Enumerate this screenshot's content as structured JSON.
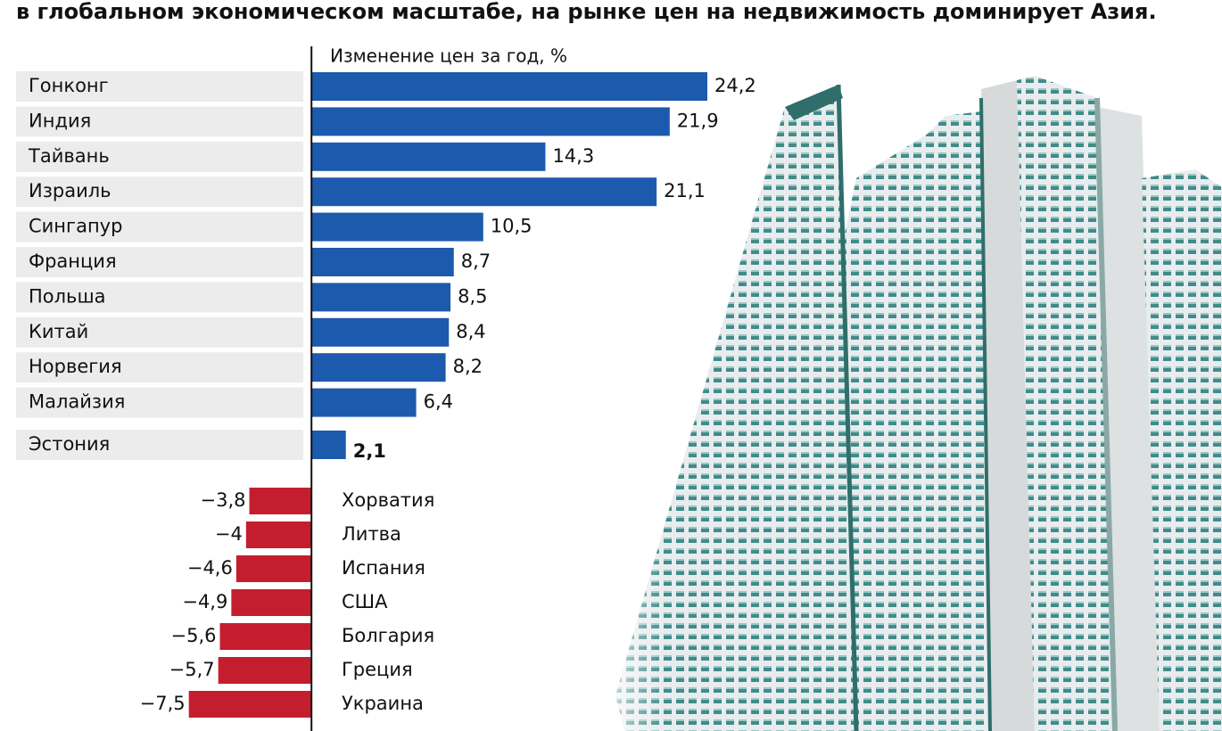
{
  "chart_data": {
    "type": "bar",
    "title": "в глобальном экономическом масштабе, на рынке цен на недвижимость доминирует Азия.",
    "axis_label": "Изменение цен за год, %",
    "categories": [
      "Гонконг",
      "Индия",
      "Тайвань",
      "Израиль",
      "Сингапур",
      "Франция",
      "Польша",
      "Китай",
      "Норвегия",
      "Малайзия",
      "Эстония",
      "Хорватия",
      "Литва",
      "Испания",
      "США",
      "Болгария",
      "Греция",
      "Украина"
    ],
    "values": [
      24.2,
      21.9,
      14.3,
      21.1,
      10.5,
      8.7,
      8.5,
      8.4,
      8.2,
      6.4,
      2.1,
      -3.8,
      -4,
      -4.6,
      -4.9,
      -5.6,
      -5.7,
      -7.5
    ],
    "value_labels": [
      "24,2",
      "21,9",
      "14,3",
      "21,1",
      "10,5",
      "8,7",
      "8,5",
      "8,4",
      "8,2",
      "6,4",
      "2,1",
      "−3,8",
      "−4",
      "−4,6",
      "−4,9",
      "−5,6",
      "−5,7",
      "−7,5"
    ],
    "colors": {
      "positive": "#1c5aad",
      "negative": "#c41e2e"
    },
    "highlight_index": 10,
    "xlim": [
      -9.5,
      24.2
    ]
  }
}
